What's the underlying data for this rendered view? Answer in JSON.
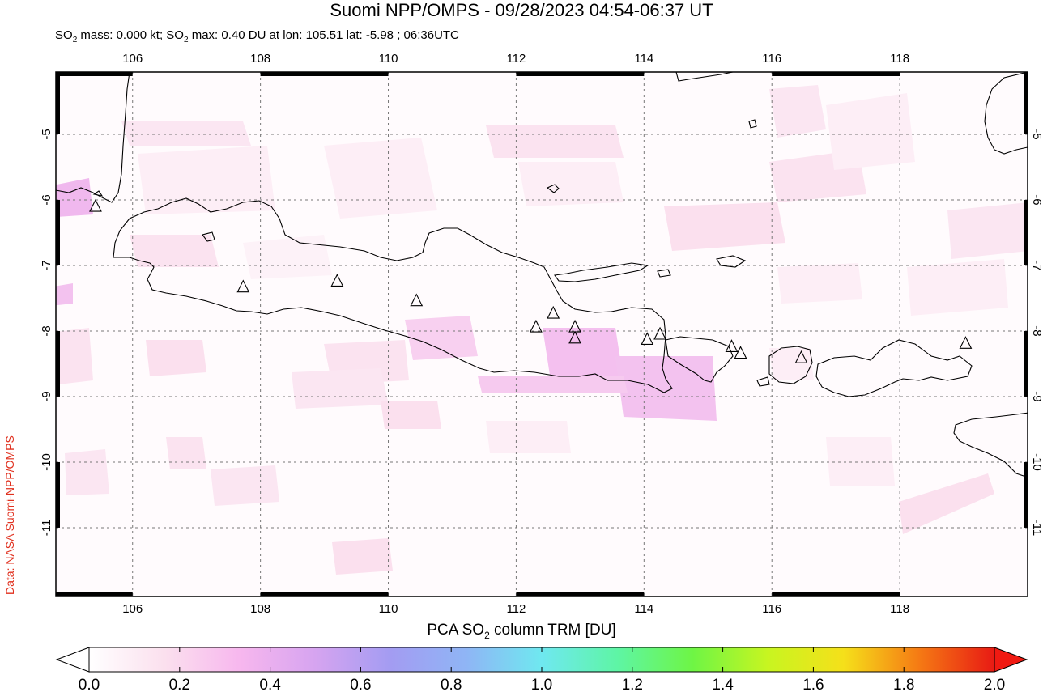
{
  "title": "Suomi NPP/OMPS - 09/28/2023 04:54-06:37 UT",
  "subtitle_parts": {
    "mass_prefix": "SO",
    "mass_sub": "2",
    "mass_text": " mass: 0.000 kt; ",
    "max_prefix": "SO",
    "max_sub": "2",
    "max_text": " max: 0.40 DU at lon: 105.51 lat: -5.98 ; 06:36UTC"
  },
  "credit": "Data: NASA Suomi-NPP/OMPS",
  "map": {
    "lon_range": [
      104.8,
      120.0
    ],
    "lat_range": [
      -12.05,
      -4.05
    ],
    "lon_ticks": [
      106,
      108,
      110,
      112,
      114,
      116,
      118
    ],
    "lon_tick_labels": [
      "106",
      "108",
      "110",
      "112",
      "114",
      "116",
      "118"
    ],
    "lat_ticks": [
      -5,
      -6,
      -7,
      -8,
      -9,
      -10,
      -11
    ],
    "lat_tick_labels": [
      "-5",
      "-6",
      "-7",
      "-8",
      "-9",
      "-10",
      "-11"
    ],
    "grid": true,
    "volcanoes": [
      {
        "lon": 105.42,
        "lat": -6.1
      },
      {
        "lon": 107.73,
        "lat": -7.33
      },
      {
        "lon": 109.2,
        "lat": -7.24
      },
      {
        "lon": 110.44,
        "lat": -7.54
      },
      {
        "lon": 112.31,
        "lat": -7.94
      },
      {
        "lon": 112.58,
        "lat": -7.73
      },
      {
        "lon": 112.92,
        "lat": -7.94
      },
      {
        "lon": 112.92,
        "lat": -8.11
      },
      {
        "lon": 114.05,
        "lat": -8.13
      },
      {
        "lon": 114.25,
        "lat": -8.05
      },
      {
        "lon": 115.37,
        "lat": -8.24
      },
      {
        "lon": 115.51,
        "lat": -8.34
      },
      {
        "lon": 116.46,
        "lat": -8.41
      },
      {
        "lon": 119.03,
        "lat": -8.19
      }
    ]
  },
  "colorbar": {
    "title_prefix": "PCA SO",
    "title_sub": "2",
    "title_suffix": " column TRM [DU]",
    "min": 0.0,
    "max": 2.0,
    "tick_labels": [
      "0.0",
      "0.2",
      "0.4",
      "0.6",
      "0.8",
      "1.0",
      "1.2",
      "1.4",
      "1.6",
      "1.8",
      "2.0"
    ],
    "colors": [
      "#ffffff",
      "#fbe0ee",
      "#f7b7ee",
      "#d6a4f0",
      "#a39cf2",
      "#8fb5f5",
      "#6fe8f0",
      "#5ef5a5",
      "#6ef545",
      "#c8f520",
      "#f5e01a",
      "#f57a14",
      "#e81a14"
    ]
  }
}
